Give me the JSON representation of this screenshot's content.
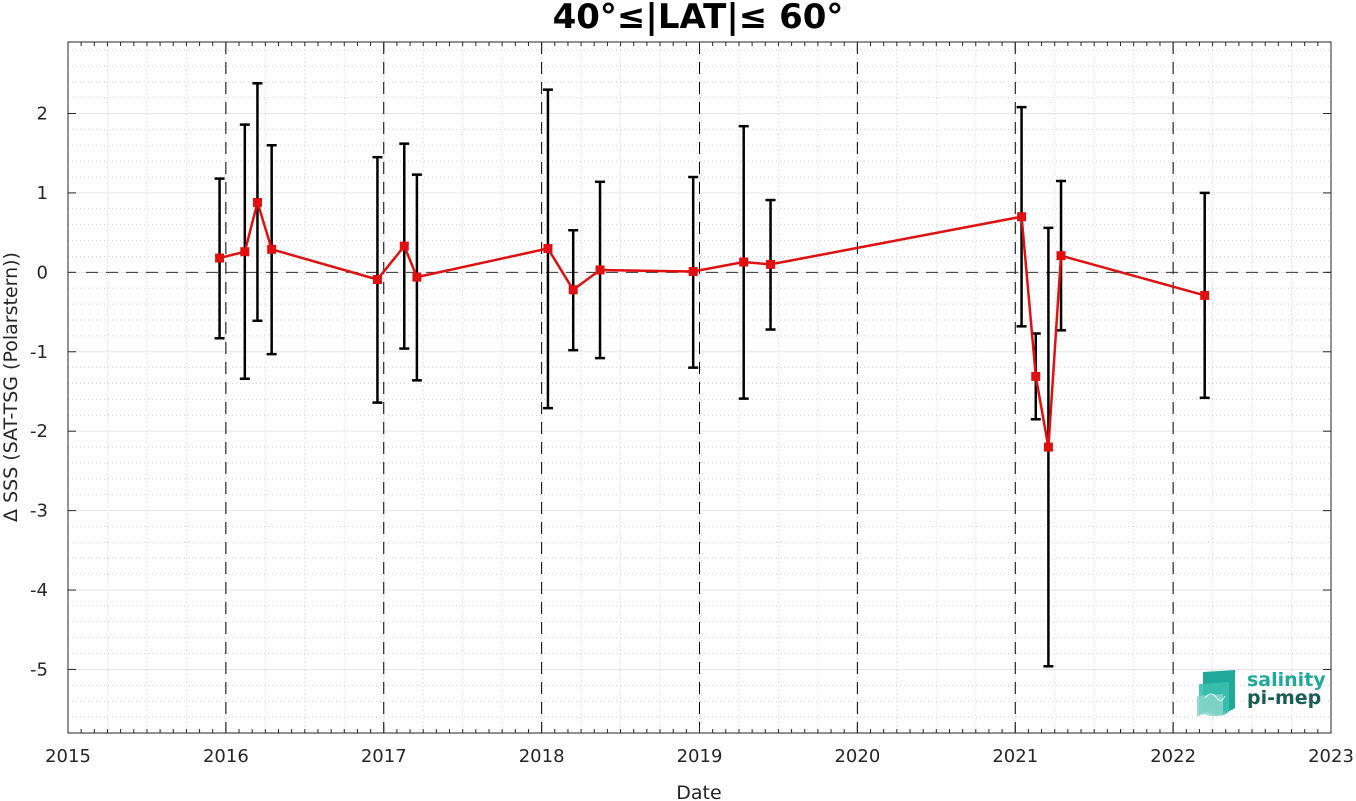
{
  "chart_data": {
    "type": "line",
    "title": "40°≤|LAT|≤ 60°",
    "xlabel": "Date",
    "ylabel": "Δ SSS (SAT-TSG (Polarstern))",
    "xlim": [
      2015,
      2023
    ],
    "ylim": [
      -5.8,
      2.9
    ],
    "x_ticks": [
      2015,
      2016,
      2017,
      2018,
      2019,
      2020,
      2021,
      2022,
      2023
    ],
    "x_tick_labels": [
      "2015",
      "2016",
      "2017",
      "2018",
      "2019",
      "2020",
      "2021",
      "2022",
      "2023"
    ],
    "y_ticks": [
      2,
      1,
      0,
      -1,
      -2,
      -3,
      -4,
      -5
    ],
    "y_tick_labels": [
      "2",
      "1",
      "0",
      "-1",
      "-2",
      "-3",
      "-4",
      "-5"
    ],
    "reference_line_y": 0,
    "year_boundaries": [
      2016,
      2017,
      2018,
      2019,
      2020,
      2021,
      2022
    ],
    "grid": true,
    "legend": "none",
    "series": [
      {
        "line_color": "#e01010",
        "error_color": "#000000",
        "x": [
          2015.96,
          2016.12,
          2016.2,
          2016.29,
          2016.96,
          2017.13,
          2017.21,
          2018.04,
          2018.2,
          2018.37,
          2018.96,
          2019.28,
          2019.45,
          2021.04,
          2021.13,
          2021.21,
          2021.29,
          2022.2
        ],
        "y": [
          0.18,
          0.26,
          0.88,
          0.29,
          -0.09,
          0.33,
          -0.06,
          0.3,
          -0.22,
          0.03,
          0.01,
          0.13,
          0.1,
          0.7,
          -1.31,
          -2.2,
          0.21,
          -0.29
        ],
        "err_low": [
          -0.83,
          -1.34,
          -0.61,
          -1.03,
          -1.64,
          -0.96,
          -1.36,
          -1.71,
          -0.98,
          -1.08,
          -1.2,
          -1.59,
          -0.72,
          -0.68,
          -1.85,
          -4.96,
          -0.73,
          -1.58
        ],
        "err_high": [
          1.18,
          1.86,
          2.38,
          1.6,
          1.45,
          1.62,
          1.23,
          2.3,
          0.53,
          1.14,
          1.2,
          1.84,
          0.91,
          2.08,
          -0.77,
          0.56,
          1.15,
          1.0
        ]
      }
    ]
  },
  "logo": {
    "line1": "salinity",
    "line2": "pi-mep"
  }
}
